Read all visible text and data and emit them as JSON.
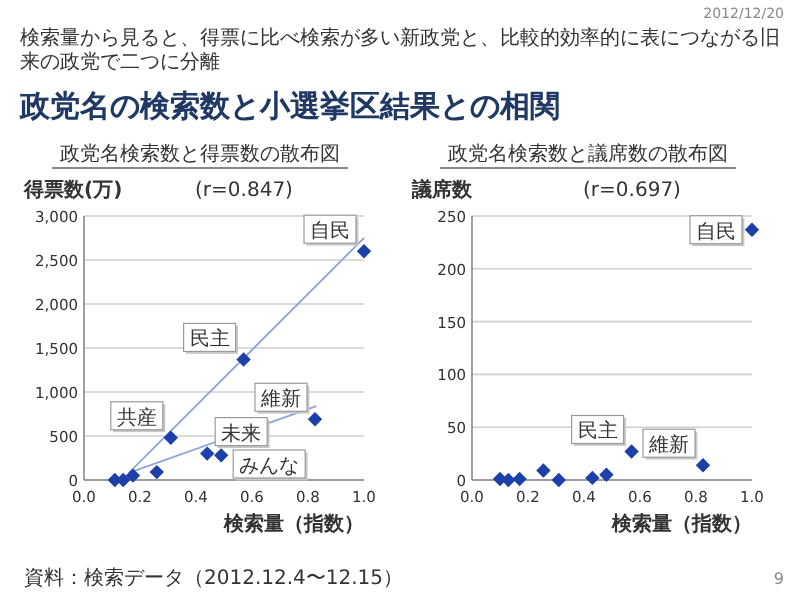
{
  "chart_data": [
    {
      "type": "other",
      "title": "政党名の検索数と小選挙区結果との相関",
      "subtitle": "検索量から見ると、得票に比べ検索が多い新政党と、比較的効率的に表につながる旧来の政党で二つに分離",
      "annotations": [
        "2012/12/20",
        "資料：検索データ（2012.12.4〜12.15）",
        "9"
      ]
    },
    {
      "type": "scatter",
      "title": "政党名検索数と得票数の散布図",
      "xlabel": "検索量（指数）",
      "ylabel": "得票数(万)",
      "marker": "diamond",
      "grid": "y",
      "xlim": [
        0,
        1
      ],
      "ylim": [
        0,
        3000
      ],
      "xticks": [
        {
          "value": 0,
          "label": "0.0"
        },
        {
          "value": 0.2,
          "label": "0.2"
        },
        {
          "value": 0.4,
          "label": "0.4"
        },
        {
          "value": 0.6,
          "label": "0.6"
        },
        {
          "value": 0.8,
          "label": "0.8"
        },
        {
          "value": 1,
          "label": "1.0"
        }
      ],
      "yticks": [
        0,
        500,
        {
          "value": 1000,
          "label": "1,000"
        },
        {
          "value": 1500,
          "label": "1,500"
        },
        {
          "value": 2000,
          "label": "2,000"
        },
        {
          "value": 2500,
          "label": "2,500"
        },
        {
          "value": 3000,
          "label": "3,000"
        }
      ],
      "series": [
        {
          "color": "#1c3fa8",
          "x": [
            0.11,
            0.14,
            0.175,
            0.26,
            0.31,
            0.44,
            0.49,
            0.57,
            0.825,
            1.0
          ],
          "values": [
            0,
            0,
            50,
            90,
            480,
            300,
            280,
            1370,
            690,
            2600
          ]
        },
        {
          "type": "line",
          "marker": "none",
          "color": "#8fa4d8",
          "x": [
            0.16,
            1.0
          ],
          "values": [
            80,
            2750
          ]
        },
        {
          "type": "line",
          "marker": "none",
          "color": "#8fa4d8",
          "x": [
            0.16,
            0.83
          ],
          "values": [
            80,
            840
          ]
        }
      ],
      "annotations": [
        "(r=0.847)",
        {
          "text": "自民",
          "x": 1.0,
          "y": 2600
        },
        {
          "text": "民主",
          "x": 0.57,
          "y": 1370
        },
        {
          "text": "維新",
          "x": 0.825,
          "y": 690
        },
        {
          "text": "共産",
          "x": 0.31,
          "y": 480
        },
        {
          "text": "未来",
          "x": 0.44,
          "y": 300
        },
        {
          "text": "みんな",
          "x": 0.49,
          "y": 280
        }
      ]
    },
    {
      "type": "scatter",
      "title": "政党名検索数と議席数の散布図",
      "xlabel": "検索量（指数）",
      "ylabel": "議席数",
      "marker": "diamond",
      "grid": "y",
      "xlim": [
        0,
        1
      ],
      "ylim": [
        0,
        250
      ],
      "xticks": [
        {
          "value": 0,
          "label": "0.0"
        },
        {
          "value": 0.2,
          "label": "0.2"
        },
        {
          "value": 0.4,
          "label": "0.4"
        },
        {
          "value": 0.6,
          "label": "0.6"
        },
        {
          "value": 0.8,
          "label": "0.8"
        },
        {
          "value": 1,
          "label": "1.0"
        }
      ],
      "yticks": [
        0,
        50,
        100,
        150,
        200,
        250
      ],
      "series": [
        {
          "color": "#1c3fa8",
          "x": [
            0.1,
            0.13,
            0.17,
            0.255,
            0.31,
            0.43,
            0.48,
            0.57,
            0.825,
            1.0
          ],
          "values": [
            1,
            0,
            1,
            9,
            0,
            2,
            5,
            27,
            14,
            237
          ]
        }
      ],
      "annotations": [
        "(r=0.697)",
        {
          "text": "自民",
          "x": 1.0,
          "y": 237
        },
        {
          "text": "民主",
          "x": 0.57,
          "y": 27
        },
        {
          "text": "維新",
          "x": 0.825,
          "y": 14
        }
      ]
    }
  ]
}
